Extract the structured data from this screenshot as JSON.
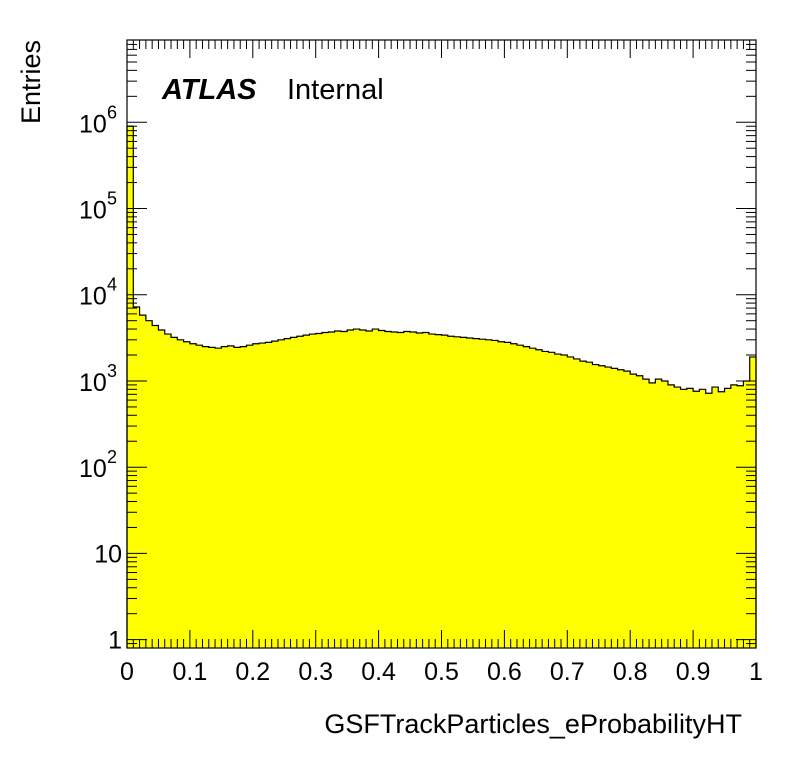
{
  "chart_data": {
    "type": "bar",
    "histogram_style": "filled-step",
    "fill_color": "#ffff00",
    "line_color": "#000000",
    "xlabel": "GSFTrackParticles_eProbabilityHT",
    "ylabel": "Entries",
    "label_bold_italic": "ATLAS",
    "label_normal": "Internal",
    "xlim": [
      0,
      1
    ],
    "ylim": [
      0.8,
      9000000
    ],
    "yscale": "log",
    "grid": false,
    "x_tick_labels": [
      {
        "value": 0,
        "label": "0"
      },
      {
        "value": 0.1,
        "label": "0.1"
      },
      {
        "value": 0.2,
        "label": "0.2"
      },
      {
        "value": 0.3,
        "label": "0.3"
      },
      {
        "value": 0.4,
        "label": "0.4"
      },
      {
        "value": 0.5,
        "label": "0.5"
      },
      {
        "value": 0.6,
        "label": "0.6"
      },
      {
        "value": 0.7,
        "label": "0.7"
      },
      {
        "value": 0.8,
        "label": "0.8"
      },
      {
        "value": 0.9,
        "label": "0.9"
      },
      {
        "value": 1,
        "label": "1"
      }
    ],
    "y_tick_labels": [
      {
        "value": 1,
        "base": "1",
        "exp": ""
      },
      {
        "value": 10,
        "base": "10",
        "exp": ""
      },
      {
        "value": 100,
        "base": "10",
        "exp": "2"
      },
      {
        "value": 1000,
        "base": "10",
        "exp": "3"
      },
      {
        "value": 10000,
        "base": "10",
        "exp": "4"
      },
      {
        "value": 100000,
        "base": "10",
        "exp": "5"
      },
      {
        "value": 1000000,
        "base": "10",
        "exp": "6"
      }
    ],
    "bin_edges_start": 0,
    "bin_width": 0.01,
    "values": [
      900000,
      7200,
      5800,
      5000,
      4400,
      3900,
      3500,
      3200,
      3000,
      2850,
      2700,
      2600,
      2500,
      2450,
      2400,
      2500,
      2550,
      2450,
      2500,
      2600,
      2700,
      2750,
      2800,
      2900,
      3000,
      3100,
      3200,
      3300,
      3400,
      3500,
      3550,
      3650,
      3700,
      3800,
      3750,
      3900,
      4000,
      3900,
      3800,
      4000,
      3850,
      3750,
      3700,
      3650,
      3750,
      3700,
      3600,
      3650,
      3500,
      3450,
      3400,
      3300,
      3250,
      3200,
      3150,
      3100,
      3050,
      3000,
      2950,
      2850,
      2800,
      2700,
      2600,
      2500,
      2400,
      2300,
      2200,
      2150,
      2050,
      2000,
      1900,
      1800,
      1700,
      1650,
      1550,
      1500,
      1450,
      1400,
      1350,
      1300,
      1200,
      1150,
      1050,
      950,
      1050,
      1000,
      900,
      850,
      800,
      820,
      760,
      800,
      720,
      850,
      750,
      820,
      900,
      880,
      1000,
      1900
    ]
  }
}
